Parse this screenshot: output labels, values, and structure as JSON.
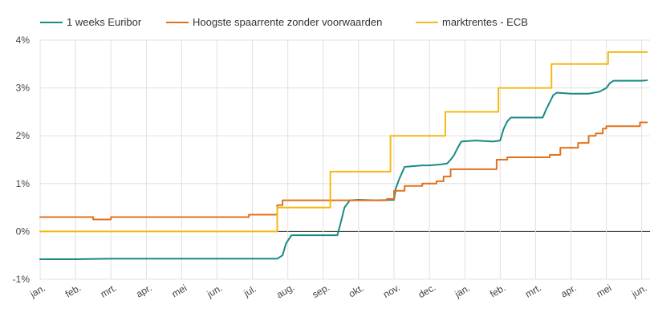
{
  "chart_data": {
    "type": "line",
    "title": "",
    "xlabel": "",
    "ylabel": "",
    "x_tick_labels": [
      "jan.",
      "feb.",
      "mrt.",
      "apr.",
      "mei",
      "jun.",
      "jul.",
      "aug.",
      "sep.",
      "okt.",
      "nov.",
      "dec.",
      "jan.",
      "feb.",
      "mrt.",
      "apr.",
      "mei",
      "jun."
    ],
    "y_tick_labels": [
      "4%",
      "3%",
      "2%",
      "1%",
      "0%",
      "-1%"
    ],
    "y_ticks": [
      4,
      3,
      2,
      1,
      0,
      -1
    ],
    "ylim": [
      -1,
      4
    ],
    "xlim": [
      0,
      17.15
    ],
    "x_units": "months since first tick (jan.)",
    "grid": true,
    "legend_position": "top-left",
    "series": [
      {
        "name": "1 weeks Euribor",
        "color": "#1a8a85",
        "points": [
          [
            0,
            -0.58
          ],
          [
            1,
            -0.58
          ],
          [
            2,
            -0.57
          ],
          [
            3,
            -0.57
          ],
          [
            4,
            -0.57
          ],
          [
            5,
            -0.57
          ],
          [
            6,
            -0.57
          ],
          [
            6.7,
            -0.57
          ],
          [
            6.85,
            -0.5
          ],
          [
            6.95,
            -0.25
          ],
          [
            7.1,
            -0.08
          ],
          [
            7.5,
            -0.08
          ],
          [
            8,
            -0.08
          ],
          [
            8.4,
            -0.08
          ],
          [
            8.5,
            0.2
          ],
          [
            8.6,
            0.5
          ],
          [
            8.75,
            0.65
          ],
          [
            9,
            0.66
          ],
          [
            9.5,
            0.65
          ],
          [
            10,
            0.66
          ],
          [
            10.05,
            0.9
          ],
          [
            10.15,
            1.1
          ],
          [
            10.3,
            1.35
          ],
          [
            10.8,
            1.38
          ],
          [
            11,
            1.38
          ],
          [
            11.3,
            1.4
          ],
          [
            11.5,
            1.42
          ],
          [
            11.6,
            1.5
          ],
          [
            11.7,
            1.6
          ],
          [
            11.8,
            1.75
          ],
          [
            11.9,
            1.88
          ],
          [
            12.3,
            1.9
          ],
          [
            12.8,
            1.88
          ],
          [
            13,
            1.9
          ],
          [
            13.1,
            2.15
          ],
          [
            13.2,
            2.3
          ],
          [
            13.3,
            2.38
          ],
          [
            13.7,
            2.38
          ],
          [
            14,
            2.38
          ],
          [
            14.2,
            2.38
          ],
          [
            14.3,
            2.55
          ],
          [
            14.4,
            2.7
          ],
          [
            14.5,
            2.85
          ],
          [
            14.6,
            2.9
          ],
          [
            15,
            2.88
          ],
          [
            15.5,
            2.88
          ],
          [
            15.8,
            2.92
          ],
          [
            16,
            3.0
          ],
          [
            16.1,
            3.1
          ],
          [
            16.2,
            3.15
          ],
          [
            16.6,
            3.15
          ],
          [
            17,
            3.15
          ],
          [
            17.15,
            3.16
          ]
        ]
      },
      {
        "name": "Hoogste spaarrente zonder voorwaarden",
        "color": "#e2711d",
        "points": [
          [
            0,
            0.3
          ],
          [
            1.5,
            0.3
          ],
          [
            1.5,
            0.25
          ],
          [
            2,
            0.25
          ],
          [
            2,
            0.3
          ],
          [
            5.9,
            0.3
          ],
          [
            5.9,
            0.35
          ],
          [
            6.7,
            0.35
          ],
          [
            6.7,
            0.55
          ],
          [
            6.85,
            0.55
          ],
          [
            6.85,
            0.65
          ],
          [
            9.8,
            0.65
          ],
          [
            9.8,
            0.68
          ],
          [
            10,
            0.68
          ],
          [
            10,
            0.85
          ],
          [
            10.3,
            0.85
          ],
          [
            10.3,
            0.95
          ],
          [
            10.8,
            0.95
          ],
          [
            10.8,
            1.0
          ],
          [
            11.2,
            1.0
          ],
          [
            11.2,
            1.05
          ],
          [
            11.4,
            1.05
          ],
          [
            11.4,
            1.15
          ],
          [
            11.6,
            1.15
          ],
          [
            11.6,
            1.3
          ],
          [
            12.9,
            1.3
          ],
          [
            12.9,
            1.5
          ],
          [
            13.2,
            1.5
          ],
          [
            13.2,
            1.55
          ],
          [
            14.4,
            1.55
          ],
          [
            14.4,
            1.6
          ],
          [
            14.7,
            1.6
          ],
          [
            14.7,
            1.75
          ],
          [
            15.2,
            1.75
          ],
          [
            15.2,
            1.85
          ],
          [
            15.5,
            1.85
          ],
          [
            15.5,
            2.0
          ],
          [
            15.7,
            2.0
          ],
          [
            15.7,
            2.05
          ],
          [
            15.9,
            2.05
          ],
          [
            15.9,
            2.15
          ],
          [
            16,
            2.15
          ],
          [
            16,
            2.2
          ],
          [
            16.95,
            2.2
          ],
          [
            16.95,
            2.28
          ],
          [
            17.15,
            2.28
          ]
        ]
      },
      {
        "name": "marktrentes - ECB",
        "color": "#f5b914",
        "points": [
          [
            0,
            0.0
          ],
          [
            6.7,
            0.0
          ],
          [
            6.7,
            0.5
          ],
          [
            8.2,
            0.5
          ],
          [
            8.2,
            1.25
          ],
          [
            9.9,
            1.25
          ],
          [
            9.9,
            2.0
          ],
          [
            11.45,
            2.0
          ],
          [
            11.45,
            2.5
          ],
          [
            12.95,
            2.5
          ],
          [
            12.95,
            3.0
          ],
          [
            14.45,
            3.0
          ],
          [
            14.45,
            3.5
          ],
          [
            16.05,
            3.5
          ],
          [
            16.05,
            3.75
          ],
          [
            17.15,
            3.75
          ]
        ]
      }
    ]
  }
}
